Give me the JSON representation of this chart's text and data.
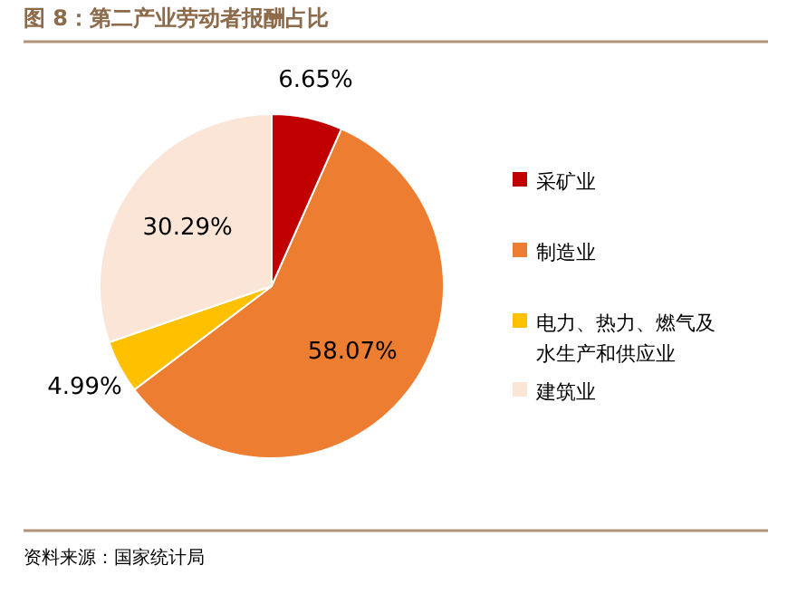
{
  "chart_data": {
    "type": "pie",
    "title": "图 8：第二产业劳动者报酬占比",
    "categories": [
      "采矿业",
      "制造业",
      "电力、热力、燃气及水生产和供应业",
      "建筑业"
    ],
    "values": [
      6.65,
      58.07,
      4.99,
      30.29
    ],
    "colors": [
      "#c00000",
      "#ed7d31",
      "#ffc000",
      "#fbe5d6"
    ],
    "value_labels": [
      "6.65%",
      "58.07%",
      "4.99%",
      "30.29%"
    ],
    "legend": "right",
    "annotations": [
      "资料来源：国家统计局"
    ]
  }
}
